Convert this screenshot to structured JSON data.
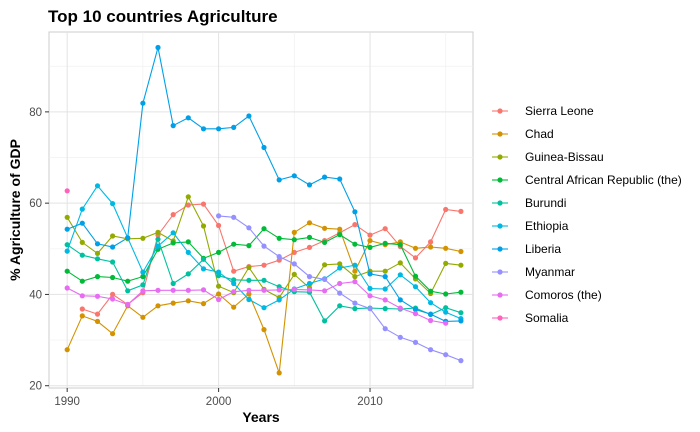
{
  "chart_data": {
    "type": "line",
    "title": "Top 10 countries Agriculture",
    "xlabel": "Years",
    "ylabel": "% Agriculture of GDP",
    "xlim": [
      1988.8,
      2016.8
    ],
    "ylim": [
      19.5,
      97.5
    ],
    "xticks": [
      1990,
      2000,
      2010
    ],
    "yticks": [
      20,
      40,
      60,
      80
    ],
    "grid": true,
    "legend_position": "right",
    "x": [
      1990,
      1991,
      1992,
      1993,
      1994,
      1995,
      1996,
      1997,
      1998,
      1999,
      2000,
      2001,
      2002,
      2003,
      2004,
      2005,
      2006,
      2007,
      2008,
      2009,
      2010,
      2011,
      2012,
      2013,
      2014,
      2015,
      2016
    ],
    "series": [
      {
        "name": "Sierra Leone",
        "color": "#F8766D",
        "values": [
          null,
          36.8,
          35.7,
          40.0,
          37.8,
          40.4,
          53.0,
          57.5,
          59.6,
          59.8,
          55.1,
          45.1,
          46.1,
          46.4,
          47.5,
          49.2,
          50.3,
          51.8,
          53.5,
          55.3,
          53.0,
          54.4,
          50.5,
          48.0,
          51.5,
          58.6,
          58.2
        ]
      },
      {
        "name": "Chad",
        "color": "#D39200",
        "values": [
          27.9,
          35.3,
          34.1,
          31.4,
          37.5,
          35.0,
          37.5,
          38.1,
          38.6,
          38.0,
          40.1,
          37.2,
          40.1,
          32.3,
          22.8,
          53.6,
          55.7,
          54.5,
          54.3,
          45.1,
          51.8,
          50.9,
          51.5,
          50.1,
          50.4,
          50.1,
          49.4
        ]
      },
      {
        "name": "Guinea-Bissau",
        "color": "#93AA00",
        "values": [
          56.9,
          51.4,
          49.0,
          52.8,
          52.2,
          52.3,
          53.6,
          51.7,
          61.4,
          55.0,
          41.8,
          40.4,
          45.9,
          41.1,
          39.3,
          44.4,
          41.4,
          46.5,
          46.7,
          43.9,
          45.1,
          45.1,
          46.9,
          43.4,
          40.2,
          46.8,
          46.4
        ]
      },
      {
        "name": "Central African Republic (the)",
        "color": "#00BA38",
        "values": [
          45.1,
          42.9,
          43.9,
          43.7,
          42.9,
          43.9,
          49.9,
          51.3,
          51.5,
          47.9,
          49.2,
          51.0,
          50.7,
          54.4,
          52.3,
          52.0,
          52.5,
          51.4,
          53.1,
          51.0,
          50.3,
          51.2,
          50.9,
          44.0,
          40.7,
          40.1,
          40.5
        ]
      },
      {
        "name": "Burundi",
        "color": "#00C19F",
        "values": [
          50.9,
          48.6,
          47.8,
          47.1,
          40.8,
          42.1,
          52.1,
          42.4,
          44.5,
          47.7,
          44.1,
          43.2,
          43.1,
          43.1,
          41.7,
          40.6,
          40.5,
          34.2,
          37.5,
          36.9,
          37.0,
          36.9,
          36.8,
          37.0,
          35.6,
          37.1,
          36.0
        ]
      },
      {
        "name": "Ethiopia",
        "color": "#00B9E3",
        "values": [
          49.5,
          58.7,
          63.8,
          59.9,
          52.4,
          44.9,
          50.6,
          53.5,
          49.2,
          45.6,
          44.9,
          42.4,
          38.9,
          37.1,
          38.8,
          41.2,
          42.4,
          43.4,
          45.8,
          46.4,
          41.3,
          41.2,
          44.3,
          41.7,
          38.2,
          36.1,
          34.7
        ]
      },
      {
        "name": "Liberia",
        "color": "#00A0E8",
        "values": [
          54.3,
          55.6,
          51.1,
          50.4,
          52.4,
          81.9,
          94.1,
          77.0,
          78.7,
          76.3,
          76.3,
          76.6,
          79.1,
          72.2,
          65.1,
          66.0,
          64.0,
          65.7,
          65.3,
          58.1,
          44.5,
          43.9,
          38.8,
          36.7,
          35.7,
          34.1,
          34.2
        ]
      },
      {
        "name": "Myanmar",
        "color": "#9590FF",
        "values": [
          null,
          null,
          null,
          null,
          null,
          null,
          null,
          null,
          null,
          null,
          57.2,
          56.9,
          54.6,
          50.6,
          48.3,
          46.7,
          43.9,
          43.3,
          40.3,
          38.1,
          36.9,
          32.5,
          30.6,
          29.5,
          27.9,
          26.8,
          25.5
        ]
      },
      {
        "name": "Comoros (the)",
        "color": "#E76BF3",
        "values": [
          41.4,
          39.7,
          39.6,
          39.0,
          37.8,
          40.8,
          40.9,
          40.9,
          40.9,
          41.0,
          38.9,
          40.6,
          40.9,
          40.9,
          41.0,
          41.1,
          41.0,
          40.8,
          42.4,
          42.8,
          39.7,
          38.8,
          37.0,
          35.8,
          34.3,
          33.7,
          null
        ]
      },
      {
        "name": "Somalia",
        "color": "#FF62BC",
        "values": [
          62.7,
          null,
          null,
          null,
          null,
          null,
          null,
          null,
          null,
          null,
          null,
          null,
          null,
          null,
          null,
          null,
          null,
          null,
          null,
          null,
          null,
          null,
          null,
          null,
          null,
          null,
          null
        ]
      }
    ]
  }
}
